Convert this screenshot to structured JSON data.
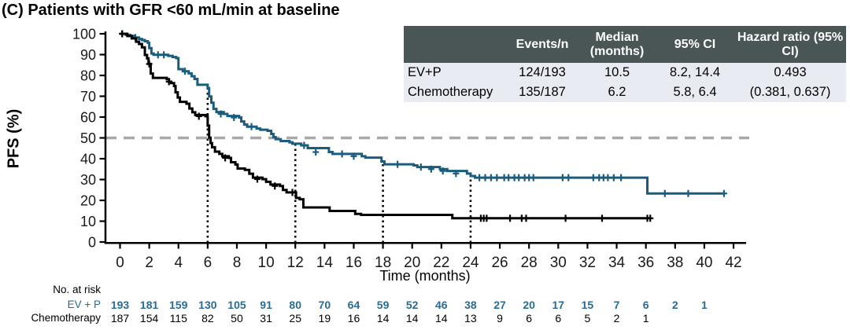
{
  "title": "(C) Patients with GFR <60 mL/min at baseline",
  "colors": {
    "ev_p_curve": "#1a5c7e",
    "ev_p_text": "#2b6b91",
    "chemo_curve": "#000000",
    "axis": "#000000",
    "tick_text": "#1a1a1a",
    "reference_dash": "#a8a8a8",
    "guide_dots": "#000000",
    "table_header_bg": "#4a5556",
    "table_header_text": "#ffffff",
    "table_row_bg": "#e9ebf2"
  },
  "summary_table": {
    "headers": [
      "",
      "Events/n",
      "Median (months)",
      "95% CI",
      "Hazard ratio (95% CI)"
    ],
    "rows": [
      [
        "EV+P",
        "124/193",
        "10.5",
        "8.2, 14.4",
        "0.493"
      ],
      [
        "Chemotherapy",
        "135/187",
        "6.2",
        "5.8, 6.4",
        "(0.381, 0.637)"
      ]
    ]
  },
  "chart_data": {
    "type": "line",
    "subtype": "kaplan-meier-step",
    "title": "(C) Patients with GFR <60 mL/min at baseline",
    "xlabel": "Time (months)",
    "ylabel": "PFS (%)",
    "xlim": [
      0,
      42
    ],
    "ylim": [
      0,
      100
    ],
    "xticks": [
      0,
      2,
      4,
      6,
      8,
      10,
      12,
      14,
      16,
      18,
      20,
      22,
      24,
      26,
      28,
      30,
      32,
      34,
      36,
      38,
      40,
      42
    ],
    "yticks": [
      0,
      10,
      20,
      30,
      40,
      50,
      60,
      70,
      80,
      90,
      100
    ],
    "grid": false,
    "reference_line_y": 50,
    "guide_lines_x": [
      6,
      12,
      18,
      24
    ],
    "series": [
      {
        "name": "EV+P",
        "median_months": 10.5,
        "end_time": 41.4,
        "steps": [
          [
            0,
            100
          ],
          [
            0.4,
            99.5
          ],
          [
            0.7,
            99
          ],
          [
            1.0,
            98.2
          ],
          [
            1.3,
            97.5
          ],
          [
            1.5,
            97
          ],
          [
            1.7,
            96.4
          ],
          [
            1.9,
            95.7
          ],
          [
            2.0,
            93.1
          ],
          [
            2.15,
            90.5
          ],
          [
            2.3,
            89.9
          ],
          [
            3.3,
            89.4
          ],
          [
            3.6,
            88.8
          ],
          [
            3.85,
            88.3
          ],
          [
            4.0,
            83.0
          ],
          [
            4.3,
            82.0
          ],
          [
            4.7,
            81.0
          ],
          [
            4.9,
            79.6
          ],
          [
            5.1,
            78.3
          ],
          [
            5.3,
            75.5
          ],
          [
            6.0,
            73.9
          ],
          [
            6.1,
            69.9
          ],
          [
            6.25,
            66.9
          ],
          [
            6.4,
            63.9
          ],
          [
            6.6,
            62.4
          ],
          [
            7.1,
            61.5
          ],
          [
            7.35,
            60.5
          ],
          [
            8.15,
            59.8
          ],
          [
            8.3,
            57.9
          ],
          [
            8.5,
            56.4
          ],
          [
            8.7,
            55.4
          ],
          [
            9.35,
            54.5
          ],
          [
            9.6,
            53.9
          ],
          [
            10.1,
            53.4
          ],
          [
            10.35,
            51.9
          ],
          [
            10.5,
            50.4
          ],
          [
            10.65,
            49.4
          ],
          [
            11.0,
            48.5
          ],
          [
            11.6,
            47.9
          ],
          [
            11.8,
            47.2
          ],
          [
            12.4,
            46.4
          ],
          [
            12.85,
            45.1
          ],
          [
            14.3,
            43.2
          ],
          [
            14.55,
            42.3
          ],
          [
            16.55,
            41.2
          ],
          [
            16.8,
            40.5
          ],
          [
            17.9,
            38.7
          ],
          [
            18.1,
            37.3
          ],
          [
            20.1,
            36.8
          ],
          [
            20.35,
            36.0
          ],
          [
            21.9,
            35.0
          ],
          [
            22.4,
            34.1
          ],
          [
            23.75,
            32.9
          ],
          [
            24.0,
            31.7
          ],
          [
            24.3,
            30.9
          ],
          [
            36.1,
            23.3
          ]
        ],
        "censors": [
          [
            0.15,
            100
          ],
          [
            1.05,
            98.2
          ],
          [
            2.6,
            89.9
          ],
          [
            3.0,
            89.9
          ],
          [
            4.45,
            82.0
          ],
          [
            6.9,
            61.5
          ],
          [
            7.8,
            59.8
          ],
          [
            9.0,
            55.4
          ],
          [
            12.6,
            46.4
          ],
          [
            13.4,
            43.2
          ],
          [
            15.2,
            42.3
          ],
          [
            16.0,
            41.2
          ],
          [
            19.0,
            37.3
          ],
          [
            20.6,
            36.0
          ],
          [
            21.3,
            35.0
          ],
          [
            22.1,
            34.1
          ],
          [
            23.0,
            32.9
          ],
          [
            24.6,
            30.9
          ],
          [
            25.0,
            30.9
          ],
          [
            25.4,
            30.9
          ],
          [
            25.8,
            30.9
          ],
          [
            26.3,
            30.9
          ],
          [
            26.6,
            30.9
          ],
          [
            27.0,
            30.9
          ],
          [
            27.3,
            30.9
          ],
          [
            27.7,
            30.9
          ],
          [
            28.0,
            30.9
          ],
          [
            28.3,
            30.9
          ],
          [
            30.3,
            30.9
          ],
          [
            30.7,
            30.9
          ],
          [
            32.4,
            30.9
          ],
          [
            32.8,
            30.9
          ],
          [
            33.1,
            30.9
          ],
          [
            33.4,
            30.9
          ],
          [
            33.8,
            30.9
          ],
          [
            34.3,
            30.9
          ],
          [
            37.3,
            23.3
          ],
          [
            38.9,
            23.3
          ],
          [
            41.35,
            23.3
          ]
        ]
      },
      {
        "name": "Chemotherapy",
        "median_months": 6.2,
        "end_time": 36.35,
        "steps": [
          [
            0,
            100
          ],
          [
            0.5,
            98.9
          ],
          [
            0.8,
            97.8
          ],
          [
            1.1,
            96.2
          ],
          [
            1.3,
            95.1
          ],
          [
            1.5,
            93.5
          ],
          [
            1.7,
            89.8
          ],
          [
            1.85,
            88.2
          ],
          [
            1.95,
            85.5
          ],
          [
            2.1,
            80.9
          ],
          [
            2.25,
            78.8
          ],
          [
            3.2,
            78.2
          ],
          [
            3.35,
            77.0
          ],
          [
            3.5,
            76.3
          ],
          [
            3.7,
            74.9
          ],
          [
            3.8,
            71.9
          ],
          [
            3.95,
            69.4
          ],
          [
            4.1,
            67.3
          ],
          [
            4.55,
            66.4
          ],
          [
            4.75,
            64.1
          ],
          [
            4.95,
            62.3
          ],
          [
            5.15,
            61.0
          ],
          [
            5.85,
            60.4
          ],
          [
            6.0,
            55.9
          ],
          [
            6.1,
            50.1
          ],
          [
            6.2,
            47.5
          ],
          [
            6.3,
            45.5
          ],
          [
            6.5,
            43.4
          ],
          [
            6.8,
            42.3
          ],
          [
            7.0,
            41.2
          ],
          [
            7.45,
            40.4
          ],
          [
            7.6,
            38.3
          ],
          [
            7.9,
            37.2
          ],
          [
            8.05,
            35.3
          ],
          [
            8.55,
            34.6
          ],
          [
            8.85,
            32.8
          ],
          [
            9.1,
            30.9
          ],
          [
            9.75,
            30.2
          ],
          [
            10.0,
            28.9
          ],
          [
            10.3,
            27.6
          ],
          [
            10.95,
            26.9
          ],
          [
            11.15,
            25.0
          ],
          [
            11.4,
            23.8
          ],
          [
            12.05,
            21.2
          ],
          [
            12.3,
            20.5
          ],
          [
            12.55,
            16.6
          ],
          [
            14.35,
            14.9
          ],
          [
            16.1,
            13.5
          ],
          [
            16.5,
            13.0
          ],
          [
            22.75,
            11.4
          ]
        ],
        "censors": [
          [
            0.15,
            100
          ],
          [
            2.0,
            85.5
          ],
          [
            3.35,
            77.0
          ],
          [
            5.4,
            60.4
          ],
          [
            7.2,
            40.4
          ],
          [
            9.4,
            30.2
          ],
          [
            10.6,
            26.9
          ],
          [
            11.8,
            23.8
          ],
          [
            24.7,
            11.4
          ],
          [
            24.9,
            11.4
          ],
          [
            25.1,
            11.4
          ],
          [
            26.7,
            11.4
          ],
          [
            27.5,
            11.4
          ],
          [
            27.8,
            11.4
          ],
          [
            30.5,
            11.4
          ],
          [
            33.0,
            11.4
          ],
          [
            36.1,
            11.4
          ],
          [
            36.3,
            11.4
          ]
        ]
      }
    ]
  },
  "risk_table": {
    "title": "No. at risk",
    "times": [
      0,
      2,
      4,
      6,
      8,
      10,
      12,
      14,
      16,
      18,
      20,
      22,
      24,
      26,
      28,
      30,
      32,
      34,
      36,
      38,
      40
    ],
    "rows": [
      {
        "label": "EV + P",
        "values": [
          "193",
          "181",
          "159",
          "130",
          "105",
          "91",
          "80",
          "70",
          "64",
          "59",
          "52",
          "46",
          "38",
          "27",
          "20",
          "17",
          "15",
          "7",
          "6",
          "2",
          "1"
        ]
      },
      {
        "label": "Chemotherapy",
        "values": [
          "187",
          "154",
          "115",
          "82",
          "50",
          "31",
          "25",
          "19",
          "16",
          "14",
          "14",
          "14",
          "13",
          "9",
          "6",
          "6",
          "5",
          "2",
          "1"
        ]
      }
    ]
  }
}
